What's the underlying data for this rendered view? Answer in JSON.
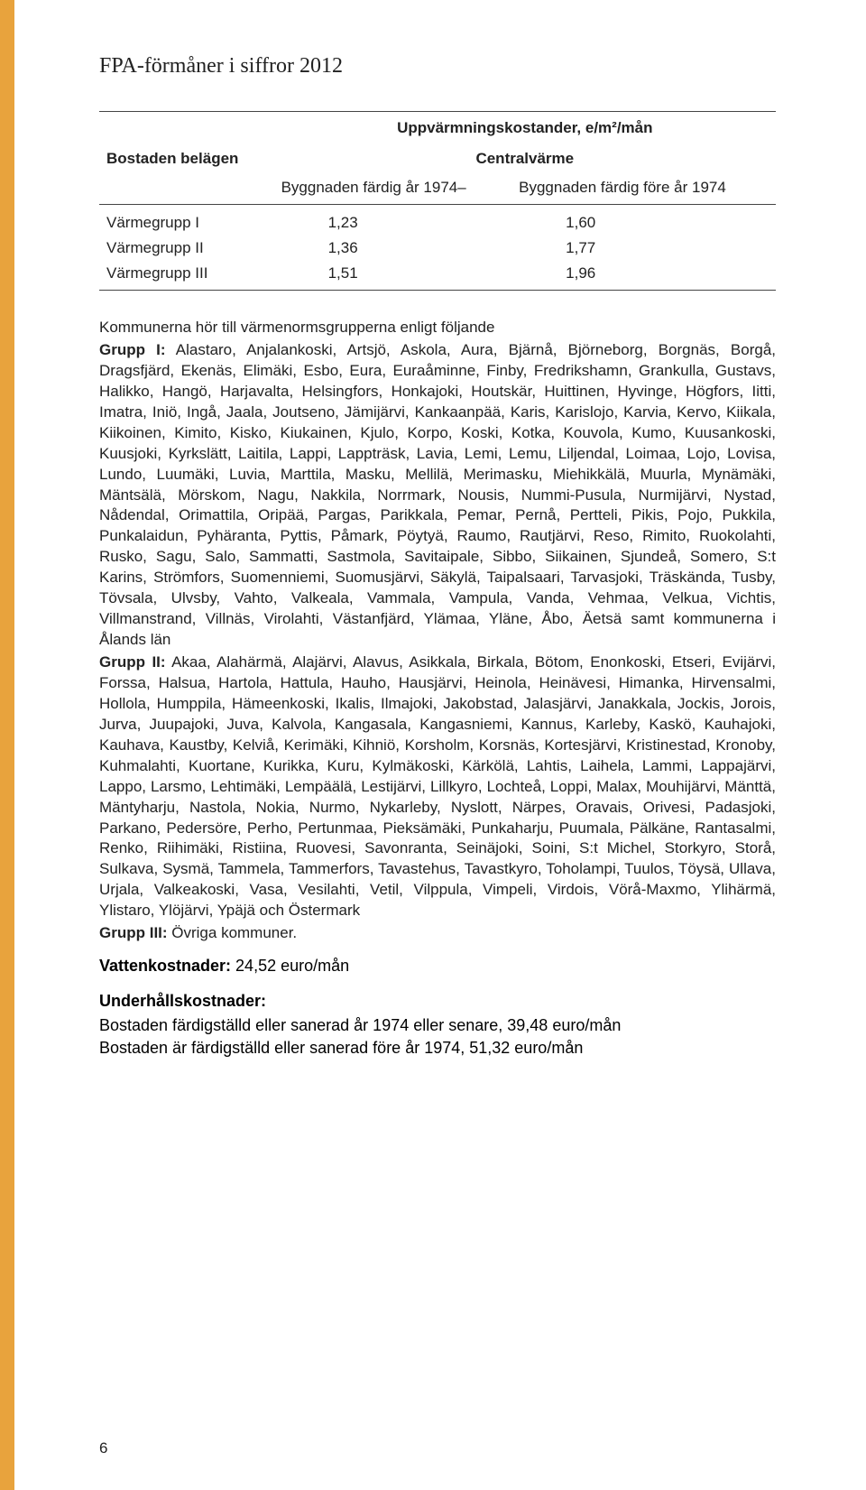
{
  "doc_title": "FPA-förmåner i siffror 2012",
  "table": {
    "header_top_left": "Bostaden belägen",
    "header_top_span": "Uppvärmningskostander, e/m²/mån",
    "header_sub_center": "Centralvärme",
    "header_col2": "Byggnaden färdig år 1974–",
    "header_col3": "Byggnaden färdig före år 1974",
    "rows": [
      {
        "label": "Värmegrupp I",
        "v1": "1,23",
        "v2": "1,60"
      },
      {
        "label": "Värmegrupp II",
        "v1": "1,36",
        "v2": "1,77"
      },
      {
        "label": "Värmegrupp III",
        "v1": "1,51",
        "v2": "1,96"
      }
    ]
  },
  "intro_line": "Kommunerna hör till värmenormsgrupperna enligt följande",
  "group1_label": "Grupp I:",
  "group1_text": " Alastaro, Anjalankoski, Artsjö, Askola, Aura, Bjärnå, Björneborg, Borgnäs, Borgå, Dragsfjärd, Ekenäs, Elimäki, Esbo, Eura, Euraåminne, Finby, Fredrikshamn, Grankulla, Gustavs, Halikko, Hangö, Harjavalta, Helsingfors, Honkajoki, Houtskär, Huittinen, Hyvinge, Högfors, Iitti, Imatra, Iniö, Ingå, Jaala, Joutseno, Jämijärvi, Kankaanpää, Karis, Karislojo, Karvia, Kervo, Kiikala, Kiikoinen, Kimito, Kisko, Kiukainen, Kjulo, Korpo, Koski, Kotka, Kouvola, Kumo, Kuusankoski, Kuusjoki, Kyrkslätt, Laitila, Lappi, Lappträsk, Lavia, Lemi, Lemu, Liljendal, Loimaa, Lojo, Lovisa, Lundo, Luumäki, Luvia, Marttila, Masku, Mellilä, Merimasku, Miehikkälä, Muurla, Mynämäki, Mäntsälä, Mörskom, Nagu, Nakkila, Norrmark, Nousis, Nummi-Pusula, Nurmijärvi, Nystad, Nådendal, Orimattila, Oripää, Pargas, Parikkala, Pemar, Pernå, Pertteli, Pikis, Pojo, Pukkila, Punkalaidun, Pyhäranta, Pyttis, Påmark, Pöytyä, Raumo, Rautjärvi, Reso, Rimito, Ruokolahti, Rusko, Sagu, Salo, Sammatti, Sastmola, Savitaipale, Sibbo, Siikainen, Sjundeå, Somero, S:t Karins, Strömfors, Suomenniemi, Suomusjärvi, Säkylä, Taipalsaari, Tarvasjoki, Träskända, Tusby, Tövsala, Ulvsby, Vahto, Valkeala, Vammala, Vampula, Vanda, Vehmaa, Velkua, Vichtis, Villmanstrand, Villnäs, Virolahti, Västanfjärd, Ylämaa, Yläne, Åbo, Äetsä samt kommunerna i Ålands län",
  "group2_label": "Grupp II:",
  "group2_text": " Akaa, Alahärmä, Alajärvi, Alavus, Asikkala, Birkala, Bötom, Enonkoski, Etseri, Evijärvi, Forssa, Halsua, Hartola, Hattula, Hauho, Hausjärvi, Heinola, Heinävesi, Himanka, Hirvensalmi, Hollola, Humppila, Hämeenkoski, Ikalis, Ilmajoki, Jakobstad, Jalasjärvi, Janakkala, Jockis, Jorois, Jurva, Juupajoki, Juva, Kalvola, Kangasala, Kangasniemi, Kannus, Karleby, Kaskö, Kauhajoki, Kauhava, Kaustby, Kelviå, Kerimäki, Kihniö, Korsholm, Korsnäs, Kortesjärvi, Kristinestad, Kronoby, Kuhmalahti, Kuortane, Kurikka, Kuru, Kylmäkoski, Kärkölä, Lahtis, Laihela, Lammi, Lappajärvi, Lappo, Larsmo, Lehtimäki, Lempäälä, Lestijärvi, Lillkyro, Lochteå, Loppi, Malax, Mouhijärvi, Mänttä, Mäntyharju, Nastola, Nokia, Nurmo, Nykarleby, Nyslott, Närpes, Oravais, Orivesi, Padasjoki, Parkano, Pedersöre, Perho, Pertunmaa, Pieksämäki, Punkaharju, Puumala, Pälkäne, Rantasalmi, Renko, Riihimäki, Ristiina, Ruovesi, Savonranta, Seinäjoki, Soini, S:t Michel, Storkyro, Storå, Sulkava, Sysmä, Tammela, Tammerfors, Tavastehus, Tavastkyro, Toholampi, Tuulos, Töysä, Ullava, Urjala, Valkeakoski, Vasa, Vesilahti, Vetil, Vilppula, Vimpeli, Virdois, Vörå-Maxmo, Ylihärmä, Ylistaro, Ylöjärvi, Ypäjä och Östermark",
  "group3_label": "Grupp III:",
  "group3_text": " Övriga kommuner.",
  "vatten_label": "Vattenkostnader:",
  "vatten_value": " 24,52 euro/mån",
  "underhall_head": "Underhållskostnader:",
  "underhall_line1": "Bostaden färdigställd eller sanerad år 1974 eller senare, 39,48 euro/mån",
  "underhall_line2": "Bostaden är färdigställd eller sanerad före år 1974, 51,32 euro/mån",
  "page_number": "6"
}
